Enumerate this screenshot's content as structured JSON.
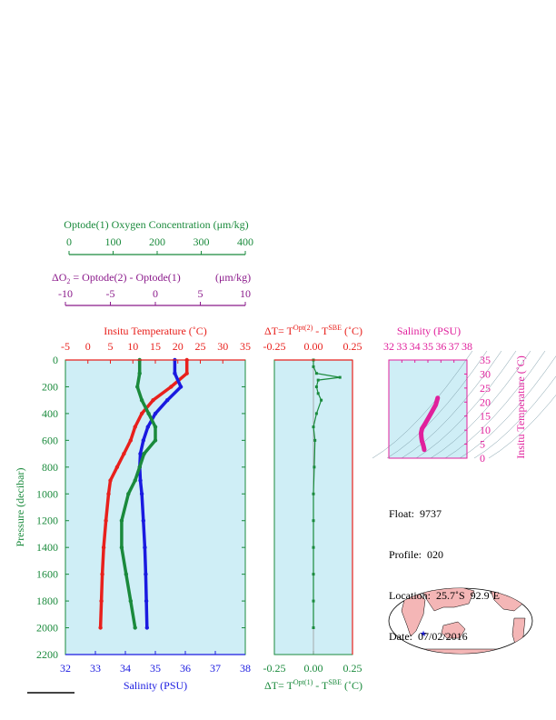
{
  "colors": {
    "oxygen": "#1a8a3c",
    "delta_o2": "#8b1a8b",
    "temperature": "#e8201c",
    "salinity": "#1a1ae0",
    "magenta": "#e0209c",
    "plot_bg": "#cfeef6",
    "land": "#f4b6b6",
    "ocean": "#ffffff"
  },
  "legend": {
    "oxygen_title": "Optode(1) Oxygen Concentration (μm/kg)",
    "oxygen_ticks": [
      "0",
      "100",
      "200",
      "300",
      "400"
    ],
    "delta_title_prefix": "ΔO",
    "delta_title_sub": "2",
    "delta_title_rest": " = Optode(2) - Optode(1)",
    "delta_title_units": "(μm/kg)",
    "delta_ticks": [
      "-10",
      "-5",
      "0",
      "5",
      "10"
    ]
  },
  "main_plot": {
    "temp_title": "Insitu Temperature (˚C)",
    "temp_ticks": [
      "-5",
      "0",
      "5",
      "10",
      "15",
      "20",
      "25",
      "30",
      "35"
    ],
    "salinity_title": "Salinity (PSU)",
    "salinity_ticks": [
      "32",
      "33",
      "34",
      "35",
      "36",
      "37",
      "38"
    ],
    "pressure_title": "Pressure (decibar)",
    "pressure_ticks": [
      "0",
      "200",
      "400",
      "600",
      "800",
      "1000",
      "1200",
      "1400",
      "1600",
      "1800",
      "2000",
      "2200"
    ]
  },
  "dt_plot": {
    "top_title_a": "ΔT= T",
    "top_title_sup1": "Opt(2)",
    "top_title_b": " - T",
    "top_title_sup2": "SBE",
    "top_title_c": " (˚C)",
    "bottom_title_a": "ΔT= T",
    "bottom_title_sup1": "Opt(1)",
    "bottom_title_b": " - T",
    "bottom_title_sup2": "SBE",
    "bottom_title_c": " (˚C)",
    "ticks": [
      "-0.25",
      "0.00",
      "0.25"
    ]
  },
  "ts_plot": {
    "title": "Salinity (PSU)",
    "x_ticks": [
      "32",
      "33",
      "34",
      "35",
      "36",
      "37",
      "38"
    ],
    "y_title": "Insitu Temperature (˚C)",
    "y_ticks": [
      "0",
      "5",
      "10",
      "15",
      "20",
      "25",
      "30",
      "35"
    ]
  },
  "float_info": {
    "float_label": "Float:",
    "float_value": "9737",
    "profile_label": "Profile:",
    "profile_value": "020",
    "location_label": "Location:",
    "location_value": "25.7˚S  92.9˚E",
    "date_label": "Date:",
    "date_value": "07/02/2016"
  },
  "chart_data": [
    {
      "type": "line",
      "name": "main-profile",
      "pressure_range": [
        0,
        2200
      ],
      "pressure": [
        0,
        100,
        200,
        300,
        400,
        500,
        600,
        700,
        800,
        900,
        1000,
        1200,
        1400,
        1600,
        1800,
        2000
      ],
      "series": [
        {
          "axis": "temperature",
          "range": [
            -5,
            35
          ],
          "values": [
            22.0,
            22.0,
            18.5,
            14.5,
            12.0,
            10.5,
            9.5,
            8.0,
            6.5,
            5.0,
            4.6,
            4.0,
            3.5,
            3.2,
            3.0,
            2.8
          ]
        },
        {
          "axis": "salinity",
          "range": [
            32,
            38
          ],
          "values": [
            35.65,
            35.65,
            35.85,
            35.4,
            35.0,
            34.75,
            34.6,
            34.5,
            34.48,
            34.5,
            34.55,
            34.6,
            34.65,
            34.68,
            34.7,
            34.72
          ]
        },
        {
          "axis": "oxygen",
          "range": [
            0,
            400
          ],
          "values": [
            165,
            165,
            160,
            170,
            185,
            200,
            200,
            175,
            165,
            155,
            140,
            125,
            125,
            135,
            145,
            155
          ]
        }
      ]
    },
    {
      "type": "line",
      "name": "delta-t-profile",
      "x_range": [
        -0.25,
        0.25
      ],
      "pressure_range": [
        0,
        2200
      ],
      "pressure": [
        0,
        50,
        100,
        130,
        150,
        200,
        250,
        300,
        400,
        500,
        600,
        800,
        1000,
        1200,
        1400,
        1600,
        1800,
        2000
      ],
      "values": [
        0.0,
        0.0,
        0.02,
        0.17,
        0.03,
        0.02,
        0.03,
        0.05,
        0.02,
        0.0,
        0.01,
        0.005,
        0.0,
        0.0,
        0.0,
        0.0,
        0.0,
        0.0
      ]
    },
    {
      "type": "scatter",
      "name": "ts-diagram",
      "x_range": [
        32,
        38
      ],
      "y_range": [
        0,
        35
      ],
      "x": [
        34.72,
        34.68,
        34.62,
        34.55,
        34.5,
        34.48,
        34.55,
        34.75,
        35.0,
        35.3,
        35.6,
        35.75
      ],
      "y": [
        3.0,
        4.0,
        5.0,
        6.0,
        7.5,
        9.0,
        10.5,
        12.0,
        14.0,
        16.5,
        19.0,
        21.5
      ]
    }
  ]
}
